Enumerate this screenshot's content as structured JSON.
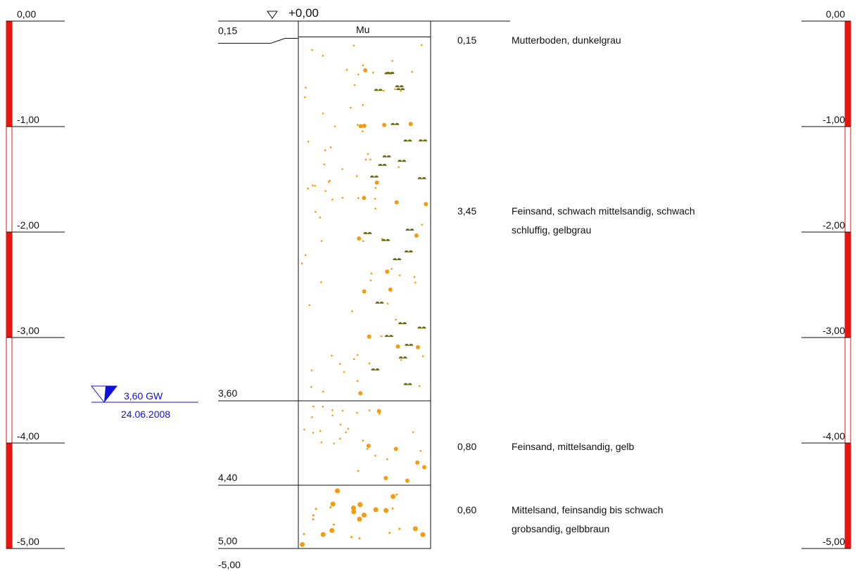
{
  "scale": {
    "min": -5.0,
    "max": 0.0,
    "labels": [
      "0,00",
      "-1,00",
      "-2,00",
      "-3,00",
      "-4,00",
      "-5,00"
    ],
    "bar_color": "#e8140e"
  },
  "borehole": {
    "top_label": "+0,00",
    "code": "Mu",
    "bottom_label": "-5,00",
    "layers": [
      {
        "top": 0.0,
        "bottom": 0.15,
        "depth_label": "0,15",
        "thickness_label": "0,15",
        "description": [
          "Mutterboden, dunkelgrau"
        ],
        "pattern": "topsoil"
      },
      {
        "top": 0.15,
        "bottom": 3.6,
        "depth_label": "3,60",
        "thickness_label": "3,45",
        "description": [
          "Feinsand, schwach mittelsandig, schwach",
          "schluffig, gelbgrau"
        ],
        "pattern": "fine-sand-silty"
      },
      {
        "top": 3.6,
        "bottom": 4.4,
        "depth_label": "4,40",
        "thickness_label": "0,80",
        "description": [
          "Feinsand, mittelsandig, gelb"
        ],
        "pattern": "fine-sand"
      },
      {
        "top": 4.4,
        "bottom": 5.0,
        "depth_label": "5,00",
        "thickness_label": "0,60",
        "description": [
          "Mittelsand, feinsandig bis schwach",
          "grobsandig, gelbbraun"
        ],
        "pattern": "medium-sand"
      }
    ],
    "sand_color": "#f39c12",
    "silt_color": "#6b6b10"
  },
  "groundwater": {
    "depth": 3.6,
    "label": "3,60 GW",
    "date": "24.06.2008",
    "color": "#1010e0"
  }
}
